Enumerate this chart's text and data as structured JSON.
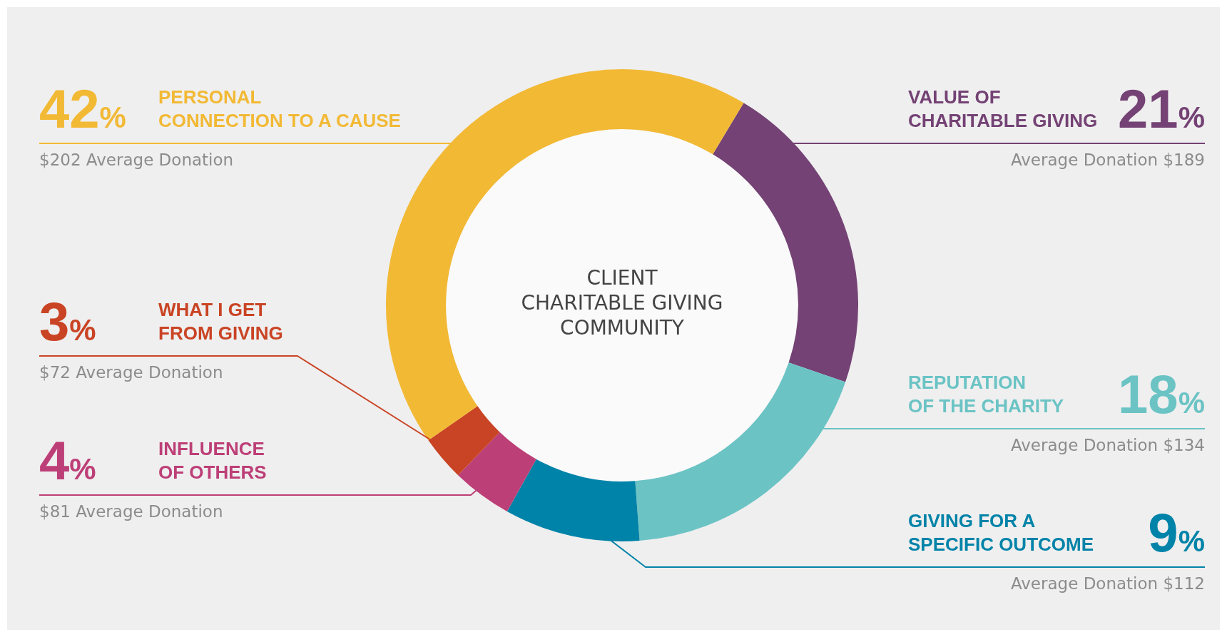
{
  "chart_data": {
    "type": "donut",
    "title": "CLIENT\nCHARITABLE GIVING\nCOMMUNITY",
    "categories": [
      "VALUE OF\nCHARITABLE GIVING",
      "REPUTATION\nOF THE CHARITY",
      "GIVING FOR A\nSPECIFIC OUTCOME",
      "INFLUENCE\nOF OTHERS",
      "WHAT I GET\nFROM GIVING",
      "PERSONAL\nCONNECTION TO A CAUSE"
    ],
    "values": [
      21,
      18,
      9,
      4,
      3,
      42
    ],
    "value_labels": [
      "21%",
      "18%",
      "9%",
      "4%",
      "3%",
      "42%"
    ],
    "colors": [
      "#744274",
      "#6bc3c4",
      "#0083a8",
      "#bd3f77",
      "#c94424",
      "#f2b935"
    ],
    "annotations": [
      "Average Donation $189",
      "Average Donation $134",
      "Average Donation $112",
      "$81 Average Donation",
      "$72 Average Donation",
      "$202 Average Donation"
    ],
    "legend": false
  }
}
